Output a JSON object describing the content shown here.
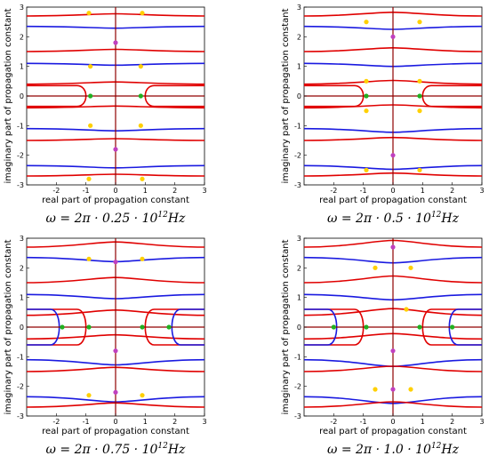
{
  "chart_data": [
    {
      "type": "contour",
      "xlabel": "real part of propagation constant",
      "ylabel": "imaginary part of propagation constant",
      "xlim": [
        -3,
        3
      ],
      "ylim": [
        -3,
        3
      ],
      "xticks": [
        "-2",
        "-1",
        "0",
        "1",
        "2",
        "3"
      ],
      "yticks": [
        "-3",
        "-2",
        "-1",
        "0",
        "1",
        "2",
        "3"
      ],
      "caption": {
        "pre": "ω = 2π · 0.25 · 10",
        "sup": "12",
        "post": "Hz"
      },
      "curve_colors": [
        "#e00000",
        "#1a1ae0"
      ],
      "points": [
        {
          "x": 0,
          "y": 1.8,
          "color": "#c040c0"
        },
        {
          "x": 0,
          "y": -1.8,
          "color": "#c040c0"
        },
        {
          "x": -0.85,
          "y": 0,
          "color": "#20b020"
        },
        {
          "x": 0.85,
          "y": 0,
          "color": "#20b020"
        },
        {
          "x": -0.85,
          "y": 1.0,
          "color": "#ffd000"
        },
        {
          "x": 0.85,
          "y": 1.0,
          "color": "#ffd000"
        },
        {
          "x": -0.85,
          "y": -1.0,
          "color": "#ffd000"
        },
        {
          "x": 0.85,
          "y": -1.0,
          "color": "#ffd000"
        },
        {
          "x": -0.9,
          "y": 2.8,
          "color": "#ffd000"
        },
        {
          "x": 0.9,
          "y": 2.8,
          "color": "#ffd000"
        },
        {
          "x": -0.9,
          "y": -2.8,
          "color": "#ffd000"
        },
        {
          "x": 0.9,
          "y": -2.8,
          "color": "#ffd000"
        }
      ]
    },
    {
      "type": "contour",
      "xlabel": "real part of propagation constant",
      "ylabel": "imaginary part of propagation constant",
      "xlim": [
        -3,
        3
      ],
      "ylim": [
        -3,
        3
      ],
      "xticks": [
        "-2",
        "-1",
        "0",
        "1",
        "2",
        "3"
      ],
      "yticks": [
        "-3",
        "-2",
        "-1",
        "0",
        "1",
        "2",
        "3"
      ],
      "caption": {
        "pre": "ω = 2π · 0.5 · 10",
        "sup": "12",
        "post": "Hz"
      },
      "curve_colors": [
        "#e00000",
        "#1a1ae0"
      ],
      "points": [
        {
          "x": 0,
          "y": 2.0,
          "color": "#c040c0"
        },
        {
          "x": 0,
          "y": -2.0,
          "color": "#c040c0"
        },
        {
          "x": -0.9,
          "y": 0,
          "color": "#20b020"
        },
        {
          "x": 0.9,
          "y": 0,
          "color": "#20b020"
        },
        {
          "x": -0.9,
          "y": 0.5,
          "color": "#ffd000"
        },
        {
          "x": 0.9,
          "y": 0.5,
          "color": "#ffd000"
        },
        {
          "x": -0.9,
          "y": -0.5,
          "color": "#ffd000"
        },
        {
          "x": 0.9,
          "y": -0.5,
          "color": "#ffd000"
        },
        {
          "x": -0.9,
          "y": 2.5,
          "color": "#ffd000"
        },
        {
          "x": 0.9,
          "y": 2.5,
          "color": "#ffd000"
        },
        {
          "x": -0.9,
          "y": -2.5,
          "color": "#ffd000"
        },
        {
          "x": 0.9,
          "y": -2.5,
          "color": "#ffd000"
        }
      ]
    },
    {
      "type": "contour",
      "xlabel": "real part of propagation constant",
      "ylabel": "imaginary part of propagation constant",
      "xlim": [
        -3,
        3
      ],
      "ylim": [
        -3,
        3
      ],
      "xticks": [
        "-2",
        "-1",
        "0",
        "1",
        "2",
        "3"
      ],
      "yticks": [
        "-3",
        "-2",
        "-1",
        "0",
        "1",
        "2",
        "3"
      ],
      "caption": {
        "pre": "ω = 2π · 0.75 · 10",
        "sup": "12",
        "post": "Hz"
      },
      "curve_colors": [
        "#e00000",
        "#1a1ae0"
      ],
      "points": [
        {
          "x": 0,
          "y": 2.2,
          "color": "#c040c0"
        },
        {
          "x": 0,
          "y": -0.8,
          "color": "#c040c0"
        },
        {
          "x": 0,
          "y": -2.2,
          "color": "#c040c0"
        },
        {
          "x": -1.8,
          "y": 0,
          "color": "#20b020"
        },
        {
          "x": -0.9,
          "y": 0,
          "color": "#20b020"
        },
        {
          "x": 0.9,
          "y": 0,
          "color": "#20b020"
        },
        {
          "x": 1.8,
          "y": 0,
          "color": "#20b020"
        },
        {
          "x": -0.9,
          "y": 2.3,
          "color": "#ffd000"
        },
        {
          "x": 0.9,
          "y": 2.3,
          "color": "#ffd000"
        },
        {
          "x": -0.9,
          "y": -2.3,
          "color": "#ffd000"
        },
        {
          "x": 0.9,
          "y": -2.3,
          "color": "#ffd000"
        }
      ]
    },
    {
      "type": "contour",
      "xlabel": "real part of propagation constant",
      "ylabel": "imaginary part of propagation constant",
      "xlim": [
        -3,
        3
      ],
      "ylim": [
        -3,
        3
      ],
      "xticks": [
        "-2",
        "-1",
        "0",
        "1",
        "2",
        "3"
      ],
      "yticks": [
        "-3",
        "-2",
        "-1",
        "0",
        "1",
        "2",
        "3"
      ],
      "caption": {
        "pre": "ω = 2π · 1.0 · 10",
        "sup": "12",
        "post": "Hz"
      },
      "curve_colors": [
        "#e00000",
        "#1a1ae0"
      ],
      "points": [
        {
          "x": 0,
          "y": 2.7,
          "color": "#c040c0"
        },
        {
          "x": 0,
          "y": -0.8,
          "color": "#c040c0"
        },
        {
          "x": 0,
          "y": -2.1,
          "color": "#c040c0"
        },
        {
          "x": -2.0,
          "y": 0,
          "color": "#20b020"
        },
        {
          "x": -0.9,
          "y": 0,
          "color": "#20b020"
        },
        {
          "x": 0.9,
          "y": 0,
          "color": "#20b020"
        },
        {
          "x": 2.0,
          "y": 0,
          "color": "#20b020"
        },
        {
          "x": 0.45,
          "y": 0.6,
          "color": "#ffd000"
        },
        {
          "x": -0.6,
          "y": 2.0,
          "color": "#ffd000"
        },
        {
          "x": 0.6,
          "y": 2.0,
          "color": "#ffd000"
        },
        {
          "x": -0.6,
          "y": -2.1,
          "color": "#ffd000"
        },
        {
          "x": 0.6,
          "y": -2.1,
          "color": "#ffd000"
        }
      ]
    }
  ]
}
